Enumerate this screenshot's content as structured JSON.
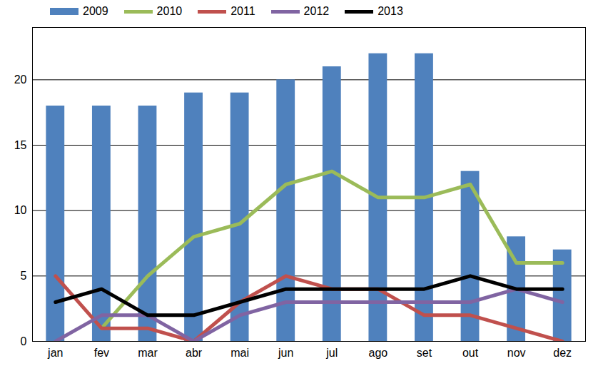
{
  "chart_data": {
    "type": "bar",
    "categories": [
      "jan",
      "fev",
      "mar",
      "abr",
      "mai",
      "jun",
      "jul",
      "ago",
      "set",
      "out",
      "nov",
      "dez"
    ],
    "series": [
      {
        "name": "2009",
        "type": "bar",
        "color": "#4f81bd",
        "values": [
          18,
          18,
          18,
          19,
          19,
          20,
          21,
          22,
          22,
          13,
          8,
          7
        ]
      },
      {
        "name": "2010",
        "type": "line",
        "color": "#9bbb59",
        "values": [
          null,
          1,
          5,
          8,
          9,
          12,
          13,
          11,
          11,
          12,
          6,
          6
        ]
      },
      {
        "name": "2011",
        "type": "line",
        "color": "#c0504d",
        "values": [
          5,
          1,
          1,
          0,
          3,
          5,
          4,
          4,
          2,
          2,
          1,
          0
        ]
      },
      {
        "name": "2012",
        "type": "line",
        "color": "#8064a2",
        "values": [
          0,
          2,
          2,
          0,
          2,
          3,
          3,
          3,
          3,
          3,
          4,
          3
        ]
      },
      {
        "name": "2013",
        "type": "line",
        "color": "#000000",
        "values": [
          3,
          4,
          2,
          2,
          3,
          4,
          4,
          4,
          4,
          5,
          4,
          4
        ]
      }
    ],
    "ylim": [
      0,
      24
    ],
    "yticks": [
      0,
      5,
      10,
      15,
      20
    ],
    "grid": true,
    "legend": "top"
  }
}
